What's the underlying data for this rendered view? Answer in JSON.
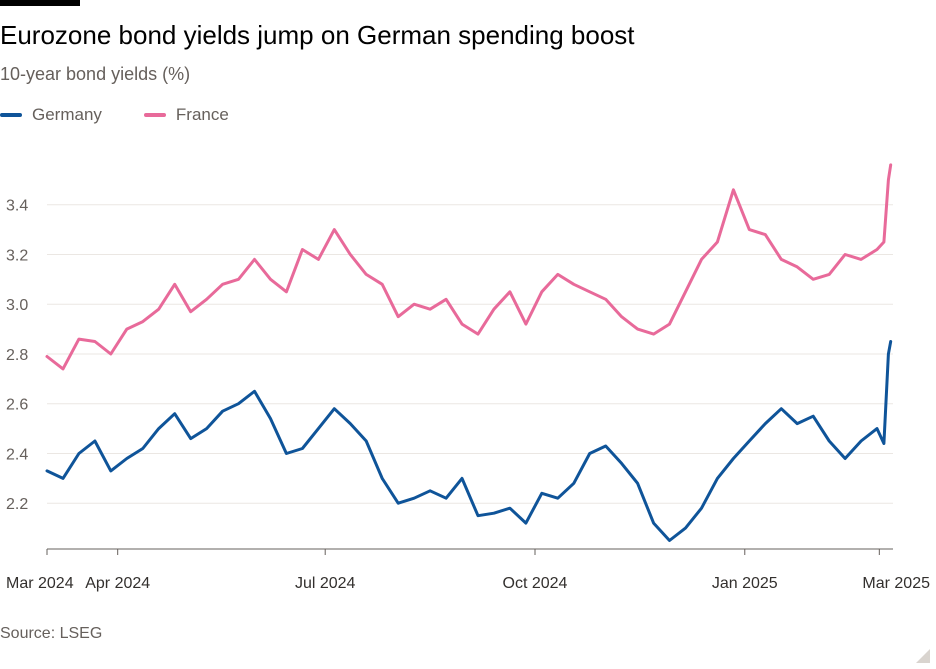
{
  "header": {
    "title": "Eurozone bond yields jump on German spending boost",
    "subtitle": "10-year bond yields (%)"
  },
  "footer": {
    "source": "Source: LSEG"
  },
  "colors": {
    "germany": "#0f5499",
    "france": "#e86a9a",
    "grid": "#ebe7e3",
    "axis": "#66605c"
  },
  "chart_data": {
    "type": "line",
    "title": "Eurozone bond yields jump on German spending boost",
    "subtitle": "10-year bond yields (%)",
    "xlabel": "",
    "ylabel": "",
    "ylim": [
      2.02,
      3.62
    ],
    "yticks": [
      2.2,
      2.4,
      2.6,
      2.8,
      3.0,
      3.2,
      3.4
    ],
    "ytick_labels": [
      "2.2",
      "2.4",
      "2.6",
      "2.8",
      "3.0",
      "3.2",
      "3.4"
    ],
    "xlim": [
      "2024-03-01",
      "2025-03-07"
    ],
    "xticks": [
      {
        "date": "2024-03-01",
        "label": "Mar 2024"
      },
      {
        "date": "2024-04-01",
        "label": "Apr 2024"
      },
      {
        "date": "2024-07-01",
        "label": "Jul 2024"
      },
      {
        "date": "2024-10-01",
        "label": "Oct 2024"
      },
      {
        "date": "2025-01-01",
        "label": "Jan 2025"
      },
      {
        "date": "2025-03-01",
        "label": "Mar 2025"
      }
    ],
    "grid": true,
    "legend": "top-left",
    "x": [
      "2024-03-01",
      "2024-03-08",
      "2024-03-15",
      "2024-03-22",
      "2024-03-29",
      "2024-04-05",
      "2024-04-12",
      "2024-04-19",
      "2024-04-26",
      "2024-05-03",
      "2024-05-10",
      "2024-05-17",
      "2024-05-24",
      "2024-05-31",
      "2024-06-07",
      "2024-06-14",
      "2024-06-21",
      "2024-06-28",
      "2024-07-05",
      "2024-07-12",
      "2024-07-19",
      "2024-07-26",
      "2024-08-02",
      "2024-08-09",
      "2024-08-16",
      "2024-08-23",
      "2024-08-30",
      "2024-09-06",
      "2024-09-13",
      "2024-09-20",
      "2024-09-27",
      "2024-10-04",
      "2024-10-11",
      "2024-10-18",
      "2024-10-25",
      "2024-11-01",
      "2024-11-08",
      "2024-11-15",
      "2024-11-22",
      "2024-11-29",
      "2024-12-06",
      "2024-12-13",
      "2024-12-20",
      "2024-12-27",
      "2025-01-03",
      "2025-01-10",
      "2025-01-17",
      "2025-01-24",
      "2025-01-31",
      "2025-02-07",
      "2025-02-14",
      "2025-02-21",
      "2025-02-28",
      "2025-03-03",
      "2025-03-05",
      "2025-03-06"
    ],
    "series": [
      {
        "name": "Germany",
        "values": [
          2.33,
          2.3,
          2.4,
          2.45,
          2.33,
          2.38,
          2.42,
          2.5,
          2.56,
          2.46,
          2.5,
          2.57,
          2.6,
          2.65,
          2.54,
          2.4,
          2.42,
          2.5,
          2.58,
          2.52,
          2.45,
          2.3,
          2.2,
          2.22,
          2.25,
          2.22,
          2.3,
          2.15,
          2.16,
          2.18,
          2.12,
          2.24,
          2.22,
          2.28,
          2.4,
          2.43,
          2.36,
          2.28,
          2.12,
          2.05,
          2.1,
          2.18,
          2.3,
          2.38,
          2.45,
          2.52,
          2.58,
          2.52,
          2.55,
          2.45,
          2.38,
          2.45,
          2.5,
          2.44,
          2.8,
          2.85
        ]
      },
      {
        "name": "France",
        "values": [
          2.79,
          2.74,
          2.86,
          2.85,
          2.8,
          2.9,
          2.93,
          2.98,
          3.08,
          2.97,
          3.02,
          3.08,
          3.1,
          3.18,
          3.1,
          3.05,
          3.22,
          3.18,
          3.3,
          3.2,
          3.12,
          3.08,
          2.95,
          3.0,
          2.98,
          3.02,
          2.92,
          2.88,
          2.98,
          3.05,
          2.92,
          3.05,
          3.12,
          3.08,
          3.05,
          3.02,
          2.95,
          2.9,
          2.88,
          2.92,
          3.05,
          3.18,
          3.25,
          3.46,
          3.3,
          3.28,
          3.18,
          3.15,
          3.1,
          3.12,
          3.2,
          3.18,
          3.22,
          3.25,
          3.5,
          3.56
        ]
      }
    ]
  }
}
